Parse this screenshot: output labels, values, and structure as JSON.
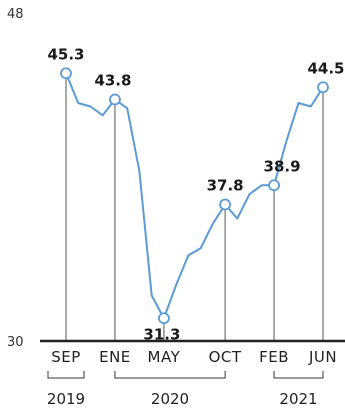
{
  "chart_data": {
    "type": "line",
    "title": "",
    "xlabel": "",
    "ylabel": "",
    "ylim": [
      30,
      48
    ],
    "y_ticks": [
      "48",
      "30"
    ],
    "x_tick_labels": [
      "SEP",
      "ENE",
      "MAY",
      "OCT",
      "FEB",
      "JUN"
    ],
    "year_groups": [
      "2019",
      "2020",
      "2021"
    ],
    "color": "#5b9bd5",
    "grid": false,
    "series": [
      {
        "x": [
          "2019-09",
          "2019-10",
          "2019-11",
          "2019-12",
          "2020-01",
          "2020-02",
          "2020-03",
          "2020-04",
          "2020-05",
          "2020-06",
          "2020-07",
          "2020-08",
          "2020-09",
          "2020-10",
          "2020-11",
          "2020-12",
          "2021-01",
          "2021-02",
          "2021-03",
          "2021-04",
          "2021-05",
          "2021-06"
        ],
        "values": [
          45.3,
          43.6,
          43.4,
          42.9,
          43.8,
          43.3,
          39.7,
          32.6,
          31.3,
          33.2,
          34.9,
          35.3,
          36.7,
          37.8,
          37.0,
          38.4,
          38.9,
          38.9,
          41.4,
          43.6,
          43.4,
          44.5
        ]
      }
    ],
    "labeled_points": [
      {
        "x": "2019-09",
        "label": "45.3"
      },
      {
        "x": "2020-01",
        "label": "43.8"
      },
      {
        "x": "2020-05",
        "label": "31.3"
      },
      {
        "x": "2020-10",
        "label": "37.8"
      },
      {
        "x": "2021-02",
        "label": "38.9"
      },
      {
        "x": "2021-06",
        "label": "44.5"
      }
    ]
  }
}
